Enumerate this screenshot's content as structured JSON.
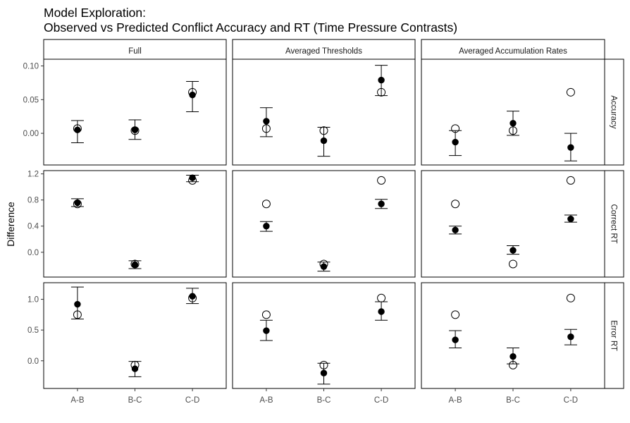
{
  "chart_data": {
    "type": "scatter",
    "title": "Model Exploration:",
    "subtitle": "Observed vs Predicted Conflict Accuracy and RT (Time Pressure Contrasts)",
    "ylabel": "Difference",
    "xlabel": "",
    "categories": [
      "A-B",
      "B-C",
      "C-D"
    ],
    "columns": [
      "Full",
      "Averaged Thresholds",
      "Averaged Accumulation Rates"
    ],
    "rows": [
      {
        "name": "Accuracy",
        "ylim": [
          -0.047,
          0.11
        ],
        "ticks": [
          0.0,
          0.05,
          0.1
        ],
        "tick_labels": [
          "0.00",
          "0.05",
          "0.10"
        ]
      },
      {
        "name": "Correct RT",
        "ylim": [
          -0.38,
          1.25
        ],
        "ticks": [
          0.0,
          0.4,
          0.8,
          1.2
        ],
        "tick_labels": [
          "0.0",
          "0.4",
          "0.8",
          "1.2"
        ]
      },
      {
        "name": "Error RT",
        "ylim": [
          -0.45,
          1.27
        ],
        "ticks": [
          0.0,
          0.5,
          1.0
        ],
        "tick_labels": [
          "0.0",
          "0.5",
          "1.0"
        ]
      }
    ],
    "panels": [
      {
        "row": 0,
        "col": 0,
        "observed": [
          0.007,
          0.004,
          0.061
        ],
        "predicted": [
          {
            "mean": 0.005,
            "lo": -0.014,
            "hi": 0.019
          },
          {
            "mean": 0.005,
            "lo": -0.009,
            "hi": 0.02
          },
          {
            "mean": 0.057,
            "lo": 0.032,
            "hi": 0.077
          }
        ]
      },
      {
        "row": 0,
        "col": 1,
        "observed": [
          0.007,
          0.004,
          0.061
        ],
        "predicted": [
          {
            "mean": 0.018,
            "lo": -0.005,
            "hi": 0.038
          },
          {
            "mean": -0.011,
            "lo": -0.034,
            "hi": 0.009
          },
          {
            "mean": 0.079,
            "lo": 0.056,
            "hi": 0.101
          }
        ]
      },
      {
        "row": 0,
        "col": 2,
        "observed": [
          0.007,
          0.004,
          0.061
        ],
        "predicted": [
          {
            "mean": -0.013,
            "lo": -0.033,
            "hi": 0.004
          },
          {
            "mean": 0.015,
            "lo": -0.003,
            "hi": 0.033
          },
          {
            "mean": -0.021,
            "lo": -0.041,
            "hi": 0.0
          }
        ]
      },
      {
        "row": 1,
        "col": 0,
        "observed": [
          0.74,
          -0.18,
          1.1
        ],
        "predicted": [
          {
            "mean": 0.76,
            "lo": 0.7,
            "hi": 0.82
          },
          {
            "mean": -0.19,
            "lo": -0.25,
            "hi": -0.13
          },
          {
            "mean": 1.14,
            "lo": 1.08,
            "hi": 1.18
          }
        ]
      },
      {
        "row": 1,
        "col": 1,
        "observed": [
          0.74,
          -0.18,
          1.1
        ],
        "predicted": [
          {
            "mean": 0.4,
            "lo": 0.32,
            "hi": 0.47
          },
          {
            "mean": -0.22,
            "lo": -0.29,
            "hi": -0.15
          },
          {
            "mean": 0.74,
            "lo": 0.67,
            "hi": 0.81
          }
        ]
      },
      {
        "row": 1,
        "col": 2,
        "observed": [
          0.74,
          -0.18,
          1.1
        ],
        "predicted": [
          {
            "mean": 0.34,
            "lo": 0.28,
            "hi": 0.4
          },
          {
            "mean": 0.03,
            "lo": -0.03,
            "hi": 0.1
          },
          {
            "mean": 0.51,
            "lo": 0.46,
            "hi": 0.57
          }
        ]
      },
      {
        "row": 2,
        "col": 0,
        "observed": [
          0.75,
          -0.07,
          1.02
        ],
        "predicted": [
          {
            "mean": 0.92,
            "lo": 0.68,
            "hi": 1.2
          },
          {
            "mean": -0.13,
            "lo": -0.26,
            "hi": -0.01
          },
          {
            "mean": 1.05,
            "lo": 0.93,
            "hi": 1.18
          }
        ]
      },
      {
        "row": 2,
        "col": 1,
        "observed": [
          0.75,
          -0.07,
          1.02
        ],
        "predicted": [
          {
            "mean": 0.49,
            "lo": 0.33,
            "hi": 0.66
          },
          {
            "mean": -0.2,
            "lo": -0.38,
            "hi": -0.04
          },
          {
            "mean": 0.8,
            "lo": 0.66,
            "hi": 0.96
          }
        ]
      },
      {
        "row": 2,
        "col": 2,
        "observed": [
          0.75,
          -0.07,
          1.02
        ],
        "predicted": [
          {
            "mean": 0.34,
            "lo": 0.21,
            "hi": 0.49
          },
          {
            "mean": 0.07,
            "lo": -0.05,
            "hi": 0.21
          },
          {
            "mean": 0.39,
            "lo": 0.26,
            "hi": 0.51
          }
        ]
      }
    ],
    "legend": "none",
    "grid": false
  }
}
